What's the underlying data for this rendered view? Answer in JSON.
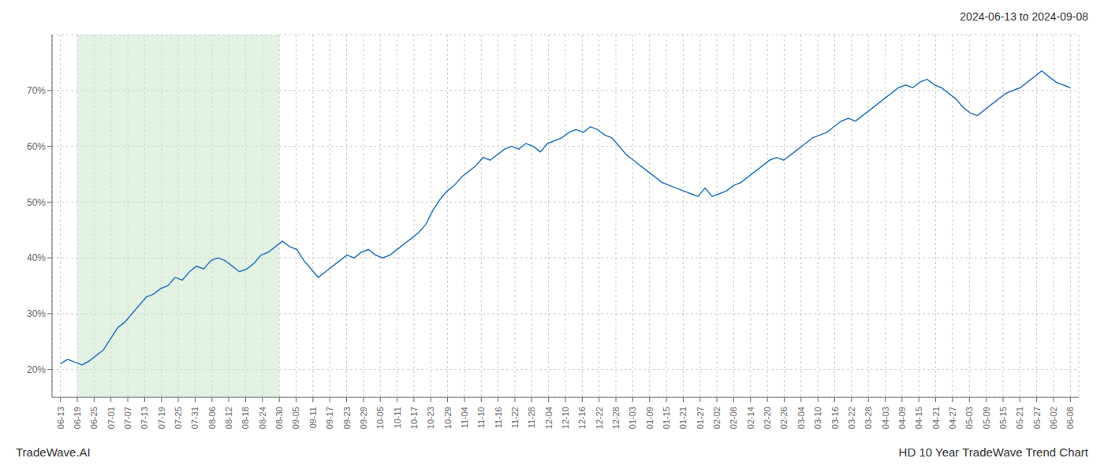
{
  "chart_data": {
    "type": "line",
    "title": "HD 10 Year TradeWave Trend Chart",
    "subtitle": "2024-06-13 to 2024-09-08",
    "annotations": [
      "TradeWave.AI"
    ],
    "color": "#2474c4",
    "grid": true,
    "ylim": [
      15,
      80
    ],
    "yticks": [
      {
        "value": 20,
        "label": "20%"
      },
      {
        "value": 30,
        "label": "30%"
      },
      {
        "value": 40,
        "label": "40%"
      },
      {
        "value": 50,
        "label": "50%"
      },
      {
        "value": 60,
        "label": "60%"
      },
      {
        "value": 70,
        "label": "70%"
      }
    ],
    "xlim": [
      -1.175,
      142.175
    ],
    "xticks": [
      {
        "value": 0,
        "label": "06-13"
      },
      {
        "value": 2.35,
        "label": "06-19"
      },
      {
        "value": 4.7,
        "label": "06-25"
      },
      {
        "value": 7.05,
        "label": "07-01"
      },
      {
        "value": 9.4,
        "label": "07-07"
      },
      {
        "value": 11.75,
        "label": "07-13"
      },
      {
        "value": 14.1,
        "label": "07-19"
      },
      {
        "value": 16.45,
        "label": "07-25"
      },
      {
        "value": 18.8,
        "label": "07-31"
      },
      {
        "value": 21.15,
        "label": "08-06"
      },
      {
        "value": 23.5,
        "label": "08-12"
      },
      {
        "value": 25.85,
        "label": "08-18"
      },
      {
        "value": 28.2,
        "label": "08-24"
      },
      {
        "value": 30.55,
        "label": "08-30"
      },
      {
        "value": 32.9,
        "label": "09-05"
      },
      {
        "value": 35.25,
        "label": "09-11"
      },
      {
        "value": 37.6,
        "label": "09-17"
      },
      {
        "value": 39.95,
        "label": "09-23"
      },
      {
        "value": 42.3,
        "label": "09-29"
      },
      {
        "value": 44.65,
        "label": "10-05"
      },
      {
        "value": 47,
        "label": "10-11"
      },
      {
        "value": 49.35,
        "label": "10-17"
      },
      {
        "value": 51.7,
        "label": "10-23"
      },
      {
        "value": 54.05,
        "label": "10-29"
      },
      {
        "value": 56.4,
        "label": "11-04"
      },
      {
        "value": 58.75,
        "label": "11-10"
      },
      {
        "value": 61.1,
        "label": "11-16"
      },
      {
        "value": 63.45,
        "label": "11-22"
      },
      {
        "value": 65.8,
        "label": "11-28"
      },
      {
        "value": 68.15,
        "label": "12-04"
      },
      {
        "value": 70.5,
        "label": "12-10"
      },
      {
        "value": 72.85,
        "label": "12-16"
      },
      {
        "value": 75.2,
        "label": "12-22"
      },
      {
        "value": 77.55,
        "label": "12-28"
      },
      {
        "value": 79.9,
        "label": "01-03"
      },
      {
        "value": 82.25,
        "label": "01-09"
      },
      {
        "value": 84.6,
        "label": "01-15"
      },
      {
        "value": 86.95,
        "label": "01-21"
      },
      {
        "value": 89.3,
        "label": "01-27"
      },
      {
        "value": 91.65,
        "label": "02-02"
      },
      {
        "value": 94,
        "label": "02-08"
      },
      {
        "value": 96.35,
        "label": "02-14"
      },
      {
        "value": 98.7,
        "label": "02-20"
      },
      {
        "value": 101.05,
        "label": "02-26"
      },
      {
        "value": 103.4,
        "label": "03-04"
      },
      {
        "value": 105.75,
        "label": "03-10"
      },
      {
        "value": 108.1,
        "label": "03-16"
      },
      {
        "value": 110.45,
        "label": "03-22"
      },
      {
        "value": 112.8,
        "label": "03-28"
      },
      {
        "value": 115.15,
        "label": "04-03"
      },
      {
        "value": 117.5,
        "label": "04-09"
      },
      {
        "value": 119.85,
        "label": "04-15"
      },
      {
        "value": 122.2,
        "label": "04-21"
      },
      {
        "value": 124.55,
        "label": "04-27"
      },
      {
        "value": 126.9,
        "label": "05-03"
      },
      {
        "value": 129.25,
        "label": "05-09"
      },
      {
        "value": 131.6,
        "label": "05-15"
      },
      {
        "value": 133.95,
        "label": "05-21"
      },
      {
        "value": 136.3,
        "label": "05-27"
      },
      {
        "value": 138.65,
        "label": "06-02"
      },
      {
        "value": 141,
        "label": "06-08"
      }
    ],
    "shaded_region": {
      "from": "06-19",
      "to": "08-30",
      "color": "#c8e6c8"
    },
    "x": [
      0,
      1,
      2,
      3,
      4,
      5,
      6,
      7,
      8,
      9,
      10,
      11,
      12,
      13,
      14,
      15,
      16,
      17,
      18,
      19,
      20,
      21,
      22,
      23,
      24,
      25,
      26,
      27,
      28,
      29,
      30,
      31,
      32,
      33,
      34,
      35,
      36,
      37,
      38,
      39,
      40,
      41,
      42,
      43,
      44,
      45,
      46,
      47,
      48,
      49,
      50,
      51,
      52,
      53,
      54,
      55,
      56,
      57,
      58,
      59,
      60,
      61,
      62,
      63,
      64,
      65,
      66,
      67,
      68,
      69,
      70,
      71,
      72,
      73,
      74,
      75,
      76,
      77,
      78,
      79,
      80,
      81,
      82,
      83,
      84,
      85,
      86,
      87,
      88,
      89,
      90,
      91,
      92,
      93,
      94,
      95,
      96,
      97,
      98,
      99,
      100,
      101,
      102,
      103,
      104,
      105,
      106,
      107,
      108,
      109,
      110,
      111,
      112,
      113,
      114,
      115,
      116,
      117,
      118,
      119,
      120,
      121,
      122,
      123,
      124,
      125,
      126,
      127,
      128,
      129,
      130,
      131,
      132,
      133,
      134,
      135,
      136,
      137,
      138,
      139,
      140,
      141
    ],
    "values": [
      21.0,
      21.8,
      21.3,
      20.8,
      21.5,
      22.5,
      23.5,
      25.5,
      27.5,
      28.5,
      30.0,
      31.5,
      33.0,
      33.5,
      34.5,
      35.0,
      36.5,
      36.0,
      37.5,
      38.5,
      38.0,
      39.5,
      40.0,
      39.5,
      38.5,
      37.5,
      38.0,
      39.0,
      40.5,
      41.0,
      42.0,
      43.0,
      42.0,
      41.5,
      39.5,
      38.0,
      36.5,
      37.5,
      38.5,
      39.5,
      40.5,
      40.0,
      41.0,
      41.5,
      40.5,
      40.0,
      40.5,
      41.5,
      42.5,
      43.5,
      44.5,
      46.0,
      48.5,
      50.5,
      52.0,
      53.0,
      54.5,
      55.5,
      56.5,
      58.0,
      57.5,
      58.5,
      59.5,
      60.0,
      59.5,
      60.5,
      60.0,
      59.0,
      60.5,
      61.0,
      61.5,
      62.5,
      63.0,
      62.5,
      63.5,
      63.0,
      62.0,
      61.5,
      60.0,
      58.5,
      57.5,
      56.5,
      55.5,
      54.5,
      53.5,
      53.0,
      52.5,
      52.0,
      51.5,
      51.0,
      52.5,
      51.0,
      51.5,
      52.0,
      53.0,
      53.5,
      54.5,
      55.5,
      56.5,
      57.5,
      58.0,
      57.5,
      58.5,
      59.5,
      60.5,
      61.5,
      62.0,
      62.5,
      63.5,
      64.5,
      65.0,
      64.5,
      65.5,
      66.5,
      67.5,
      68.5,
      69.5,
      70.5,
      71.0,
      70.5,
      71.5,
      72.0,
      71.0,
      70.5,
      69.5,
      68.5,
      67.0,
      66.0,
      65.5,
      66.5,
      67.5,
      68.5,
      69.5,
      70.0,
      70.5,
      71.5,
      72.5,
      73.5,
      72.5,
      71.5,
      71.0,
      70.5
    ]
  }
}
